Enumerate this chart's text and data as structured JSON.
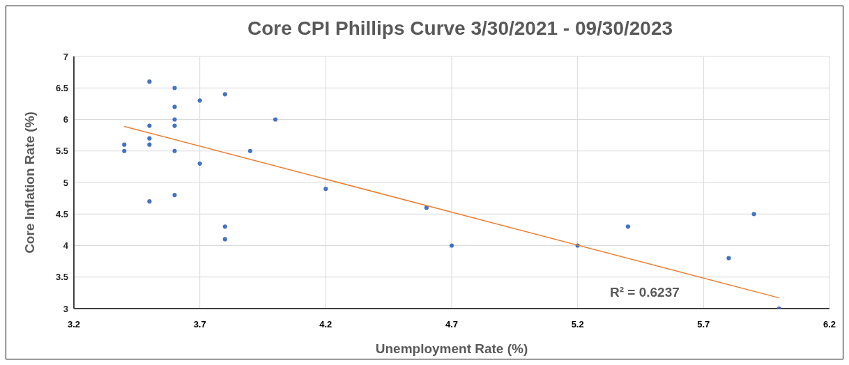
{
  "chart_data": {
    "type": "scatter",
    "title": "Core CPI Phillips Curve 3/30/2021 - 09/30/2023",
    "xlabel": "Unemployment Rate (%)",
    "ylabel": "Core Inflation Rate (%)",
    "series": [
      {
        "color": "#4472c4",
        "marker": "circle",
        "x": [
          3.4,
          3.4,
          3.5,
          3.5,
          3.5,
          3.5,
          3.5,
          3.6,
          3.6,
          3.6,
          3.6,
          3.6,
          3.6,
          3.7,
          3.7,
          3.8,
          3.8,
          3.8,
          3.9,
          4.0,
          4.2,
          4.6,
          4.7,
          5.2,
          5.4,
          5.8,
          5.9,
          6.0
        ],
        "values": [
          5.6,
          5.5,
          6.6,
          5.9,
          5.7,
          5.6,
          4.7,
          6.5,
          6.2,
          6.0,
          5.9,
          5.5,
          4.8,
          6.3,
          5.3,
          6.4,
          4.3,
          4.1,
          5.5,
          6.0,
          4.9,
          4.6,
          4.0,
          4.0,
          4.3,
          3.8,
          4.5,
          3.0
        ]
      },
      {
        "type": "line",
        "color": "#ed7d31",
        "x": [
          3.4,
          6.0
        ],
        "values": [
          5.89,
          3.17
        ]
      }
    ],
    "xlim": [
      3.2,
      6.2
    ],
    "xticks": [
      3.2,
      3.7,
      4.2,
      4.7,
      5.2,
      5.7,
      6.2
    ],
    "ylim": [
      3,
      7
    ],
    "yticks": [
      3,
      3.5,
      4,
      4.5,
      5,
      5.5,
      6,
      6.5,
      7
    ],
    "grid": true,
    "line_style": "solid",
    "annotations": [
      "R² = 0.6237"
    ]
  }
}
